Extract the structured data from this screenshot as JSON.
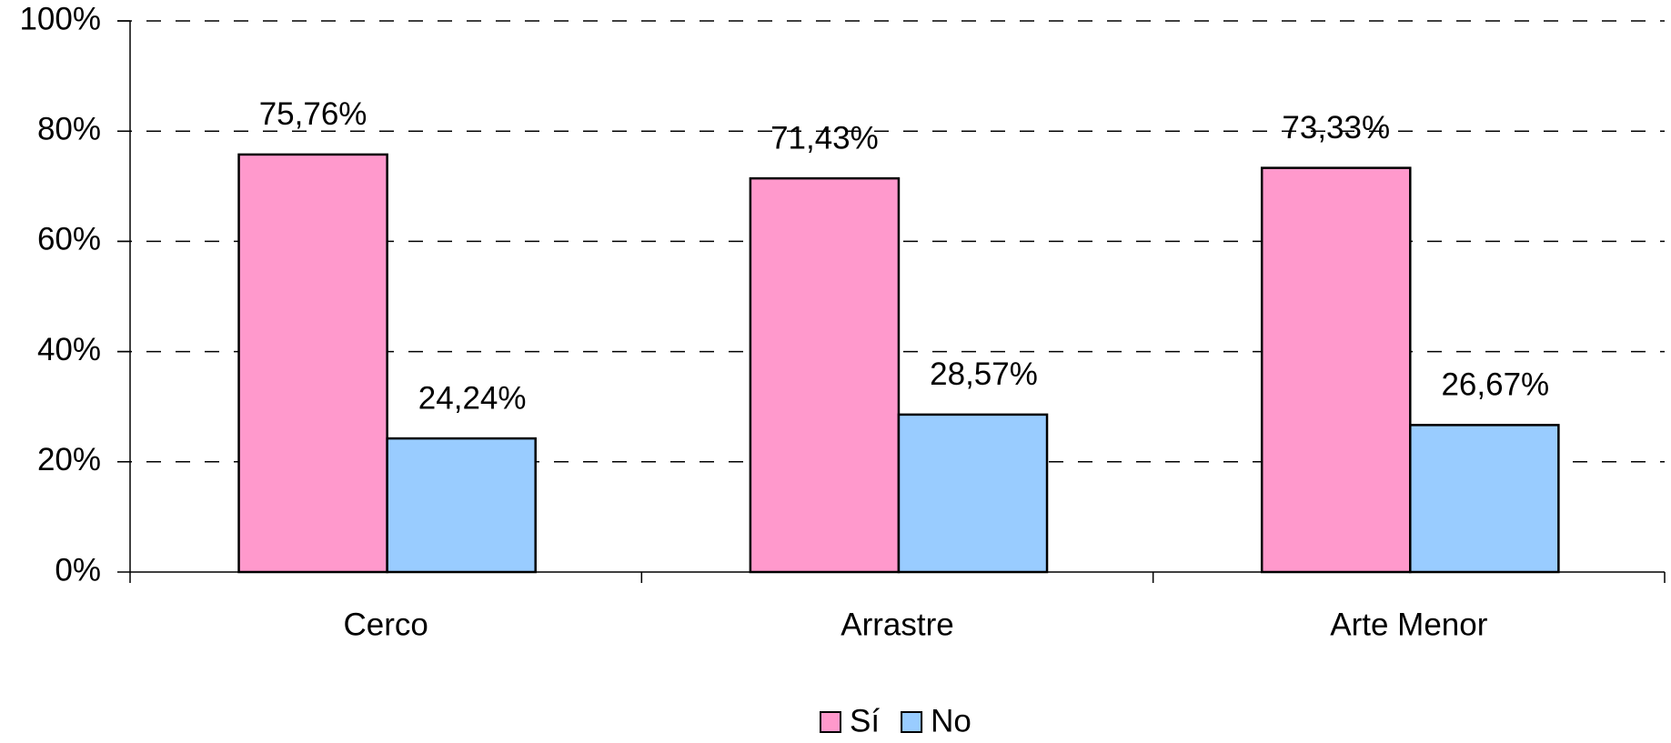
{
  "chart_data": {
    "type": "bar",
    "categories": [
      "Cerco",
      "Arrastre",
      "Arte Menor"
    ],
    "series": [
      {
        "name": "Sí",
        "color": "#ff99cc",
        "values": [
          75.76,
          71.43,
          73.33
        ],
        "value_labels": [
          "75,76%",
          "71,43%",
          "73,33%"
        ]
      },
      {
        "name": "No",
        "color": "#99ccff",
        "values": [
          24.24,
          28.57,
          26.67
        ],
        "value_labels": [
          "24,24%",
          "28,57%",
          "26,67%"
        ]
      }
    ],
    "ylim": [
      0,
      100
    ],
    "yticks": [
      {
        "value": 0,
        "label": "0%"
      },
      {
        "value": 20,
        "label": "20%"
      },
      {
        "value": 40,
        "label": "40%"
      },
      {
        "value": 60,
        "label": "60%"
      },
      {
        "value": 80,
        "label": "80%"
      },
      {
        "value": 100,
        "label": "100%"
      }
    ],
    "grid": true,
    "legend": "bottom"
  }
}
